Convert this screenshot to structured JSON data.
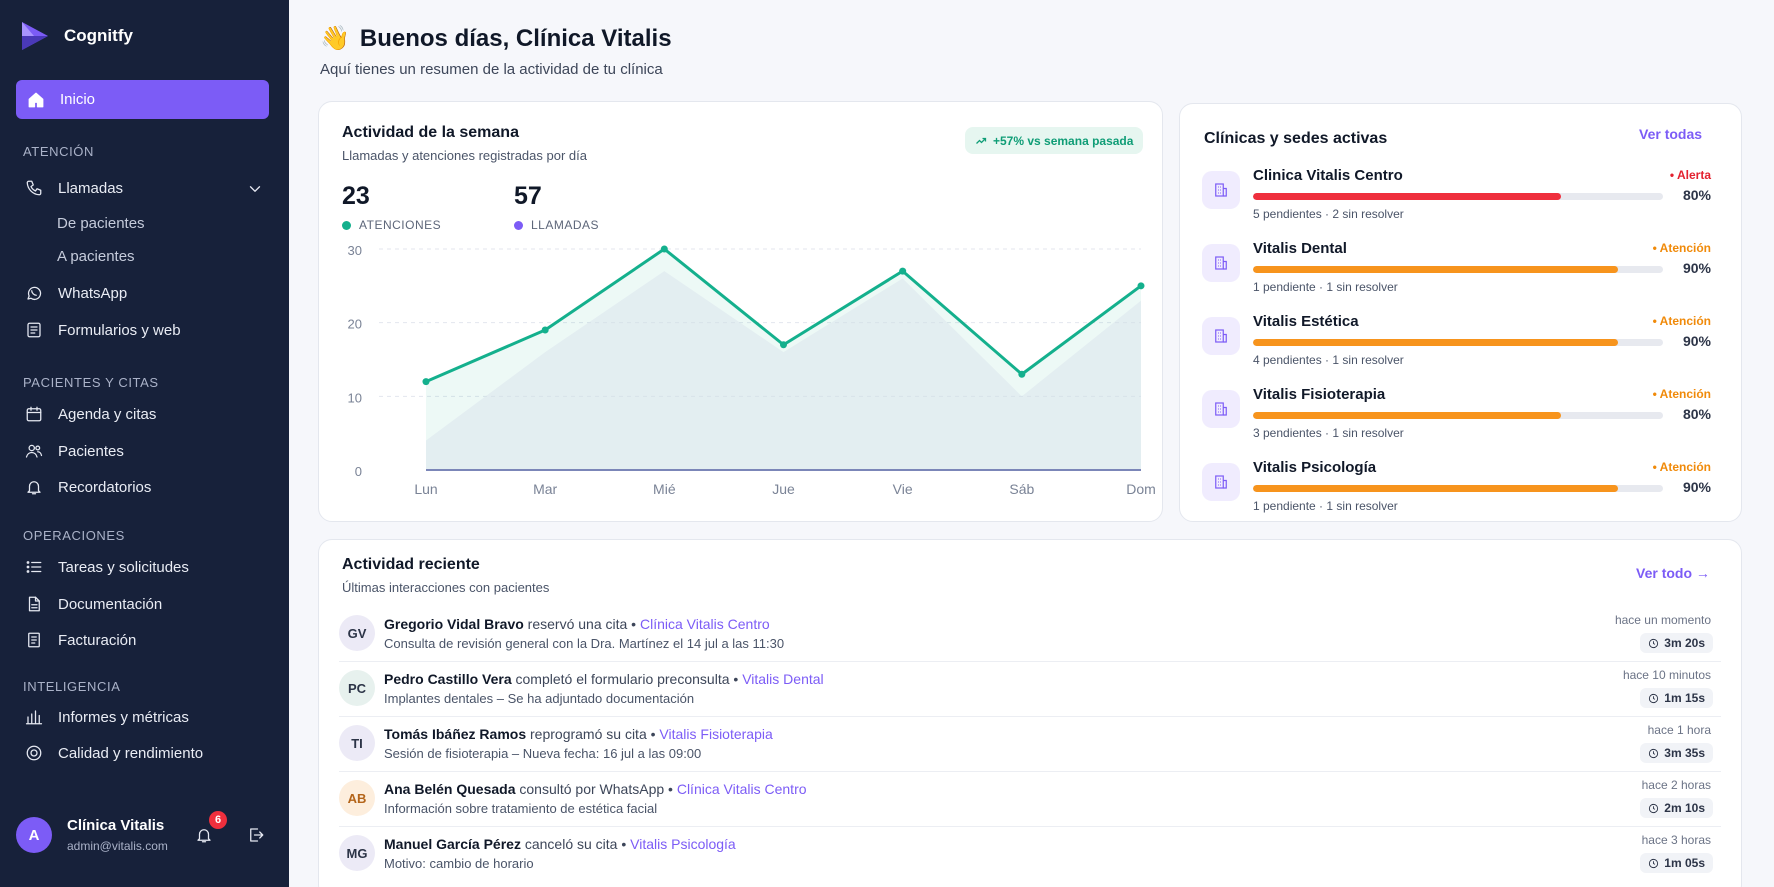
{
  "sidebar": {
    "brand": "Cognitfy",
    "active_item": "Inicio",
    "sections": [
      {
        "label": "ATENCIÓN"
      },
      {
        "label": "PACIENTES Y CITAS"
      },
      {
        "label": "OPERACIONES"
      },
      {
        "label": "INTELIGENCIA"
      }
    ],
    "items": {
      "llamadas": "Llamadas",
      "de_pacientes": "De pacientes",
      "a_pacientes": "A pacientes",
      "whatsapp": "WhatsApp",
      "formularios": "Formularios y web",
      "agenda": "Agenda y citas",
      "pacientes": "Pacientes",
      "recordatorios": "Recordatorios",
      "tareas": "Tareas y solicitudes",
      "documentacion": "Documentación",
      "facturacion": "Facturación",
      "informes": "Informes y métricas",
      "calidad": "Calidad y rendimiento"
    },
    "user": {
      "initial": "A",
      "name": "Clínica Vitalis",
      "email": "admin@vitalis.com",
      "notifications": "6"
    }
  },
  "header": {
    "emoji": "👋",
    "greeting": "Buenos días, Clínica Vitalis",
    "subtitle": "Aquí tienes un resumen de la actividad de tu clínica"
  },
  "activity": {
    "title": "Actividad de la semana",
    "subtitle": "Llamadas y atenciones registradas por día",
    "trend": "+57% vs semana pasada",
    "metrics": [
      {
        "value": "23",
        "label": "ATENCIONES",
        "color": "#14b08d"
      },
      {
        "value": "57",
        "label": "LLAMADAS",
        "color": "#7c5cf6"
      }
    ]
  },
  "chart_data": {
    "type": "area",
    "categories": [
      "Lun",
      "Mar",
      "Mié",
      "Jue",
      "Vie",
      "Sáb",
      "Dom"
    ],
    "yticks": [
      0,
      10,
      20,
      30
    ],
    "ylim": [
      0,
      31
    ],
    "series": [
      {
        "name": "ATENCIONES",
        "color": "#14b08d",
        "values": [
          12,
          19,
          30,
          17,
          27,
          13,
          25
        ]
      },
      {
        "name": "LLAMADAS",
        "color": "#7c5cf6",
        "values": [
          4,
          16,
          27,
          16,
          26,
          10,
          23
        ]
      }
    ],
    "grid": true
  },
  "clinics": {
    "title": "Clínicas y sedes activas",
    "link": "Ver todas",
    "items": [
      {
        "name": "Clinica Vitalis Centro",
        "status": "• Alerta",
        "status_color": "#e3212f",
        "bar_color": "#ef2f3d",
        "progress": 0.75,
        "pct": "80%",
        "meta": "5 pendientes · 2 sin resolver"
      },
      {
        "name": "Vitalis Dental",
        "status": "• Atención",
        "status_color": "#f08a0a",
        "bar_color": "#f7941d",
        "progress": 0.89,
        "pct": "90%",
        "meta": "1 pendiente · 1 sin resolver"
      },
      {
        "name": "Vitalis Estética",
        "status": "• Atención",
        "status_color": "#f08a0a",
        "bar_color": "#f7941d",
        "progress": 0.89,
        "pct": "90%",
        "meta": "4 pendientes · 1 sin resolver"
      },
      {
        "name": "Vitalis Fisioterapia",
        "status": "• Atención",
        "status_color": "#f08a0a",
        "bar_color": "#f7941d",
        "progress": 0.75,
        "pct": "80%",
        "meta": "3 pendientes · 1 sin resolver"
      },
      {
        "name": "Vitalis Psicología",
        "status": "• Atención",
        "status_color": "#f08a0a",
        "bar_color": "#f7941d",
        "progress": 0.89,
        "pct": "90%",
        "meta": "1 pendiente · 1 sin resolver"
      }
    ]
  },
  "recent": {
    "title": "Actividad reciente",
    "subtitle": "Últimas interacciones con pacientes",
    "link": "Ver todo →",
    "items": [
      {
        "initials": "GV",
        "name": "Gregorio Vidal Bravo",
        "verb": "reservó una cita",
        "sep": " • ",
        "clinic": "Clínica Vitalis Centro",
        "detail": "Consulta de revisión general con la Dra. Martínez el 14 jul a las 11:30",
        "time": "hace un momento",
        "duration": "3m 20s",
        "bg": "#eceaf6",
        "fg": "#2c3447"
      },
      {
        "initials": "PC",
        "name": "Pedro Castillo Vera",
        "verb": "completó el formulario preconsulta",
        "sep": " • ",
        "clinic": "Vitalis Dental",
        "detail": "Implantes dentales – Se ha adjuntado documentación",
        "time": "hace 10 minutos",
        "duration": "1m 15s",
        "bg": "#e7f1ee",
        "fg": "#2c3447"
      },
      {
        "initials": "TI",
        "name": "Tomás Ibáñez Ramos",
        "verb": "reprogramó su cita",
        "sep": " • ",
        "clinic": "Vitalis Fisioterapia",
        "detail": "Sesión de fisioterapia – Nueva fecha: 16 jul a las 09:00",
        "time": "hace 1 hora",
        "duration": "3m 35s",
        "bg": "#eceaf6",
        "fg": "#2c3447"
      },
      {
        "initials": "AB",
        "name": "Ana Belén Quesada",
        "verb": "consultó por WhatsApp",
        "sep": " • ",
        "clinic": "Clínica Vitalis Centro",
        "detail": "Información sobre tratamiento de estética facial",
        "time": "hace 2 horas",
        "duration": "2m 10s",
        "bg": "#fdeedd",
        "fg": "#b4651a"
      },
      {
        "initials": "MG",
        "name": "Manuel García Pérez",
        "verb": "canceló su cita",
        "sep": " • ",
        "clinic": "Vitalis Psicología",
        "detail": "Motivo: cambio de horario",
        "time": "hace 3 horas",
        "duration": "1m 05s",
        "bg": "#eceaf6",
        "fg": "#2c3447"
      }
    ]
  }
}
